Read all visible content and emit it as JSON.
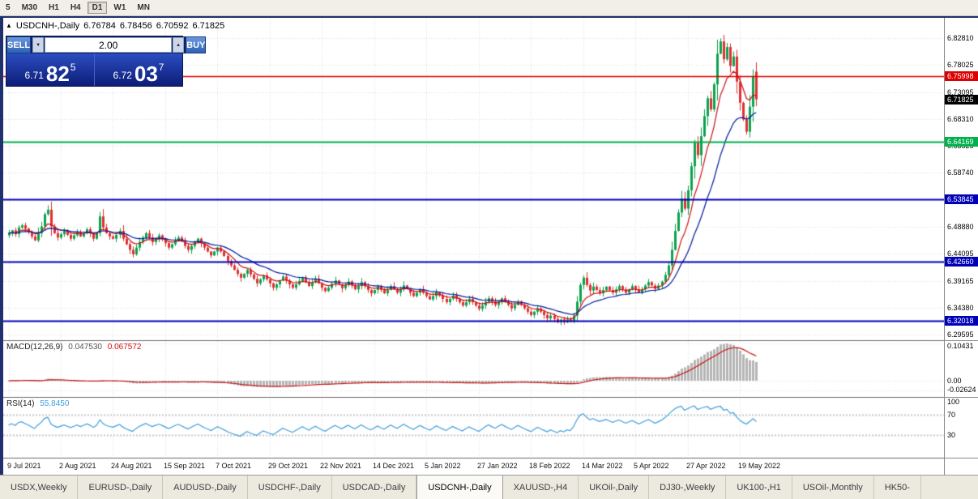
{
  "toolbar": {
    "timeframes": [
      {
        "label": "5",
        "active": false
      },
      {
        "label": "M30",
        "active": false
      },
      {
        "label": "H1",
        "active": false
      },
      {
        "label": "H4",
        "active": false
      },
      {
        "label": "D1",
        "active": true
      },
      {
        "label": "W1",
        "active": false
      },
      {
        "label": "MN",
        "active": false
      }
    ]
  },
  "chart": {
    "panel_toggle_icon": "▲",
    "symbol_label": "USDCNH-,Daily",
    "ohlc": {
      "open": "6.76784",
      "high": "6.78456",
      "low": "6.70592",
      "close": "6.71825"
    },
    "trade_panel": {
      "sell_label": "SELL",
      "buy_label": "BUY",
      "volume": "2.00",
      "spin_down_icon": "▼",
      "spin_up_icon": "▲",
      "sell_price": {
        "small": "6.71",
        "big": "82",
        "sup": "5"
      },
      "buy_price": {
        "small": "6.72",
        "big": "03",
        "sup": "7"
      }
    },
    "levels": [
      {
        "label": "6.75998",
        "value": 6.75998,
        "color": "#dc0000",
        "width": 1.4
      },
      {
        "label": "6.64169",
        "value": 6.64169,
        "color": "#00b04c",
        "width": 2
      },
      {
        "label": "6.53845",
        "value": 6.53845,
        "color": "#0000b8",
        "width": 2
      },
      {
        "label": "6.42660",
        "value": 6.4266,
        "color": "#0000b8",
        "width": 2
      },
      {
        "label": "6.32018",
        "value": 6.32018,
        "color": "#0000b8",
        "width": 2
      }
    ],
    "current_price": {
      "label": "6.71825",
      "value": 6.71825,
      "color": "#000000"
    },
    "y_axis_labels": [
      "6.82810",
      "6.78025",
      "6.73095",
      "6.68310",
      "6.63525",
      "6.58740",
      "6.48880",
      "6.44095",
      "6.39165",
      "6.34380",
      "6.29595"
    ]
  },
  "indicators": {
    "macd": {
      "label": "MACD(12,26,9)",
      "value_main": "0.047530",
      "value_signal": "0.067572",
      "axis": [
        "0.10431",
        "0.00",
        "-0.02624"
      ]
    },
    "rsi": {
      "label": "RSI(14)",
      "value": "55.8450",
      "axis": [
        "100",
        "70",
        "30"
      ],
      "levels": [
        70,
        30
      ]
    }
  },
  "chart_data": {
    "type": "candlestick",
    "symbol": "USDCNH-",
    "timeframe": "Daily",
    "x_labels": [
      "9 Jul 2021",
      "2 Aug 2021",
      "24 Aug 2021",
      "15 Sep 2021",
      "7 Oct 2021",
      "29 Oct 2021",
      "22 Nov 2021",
      "14 Dec 2021",
      "5 Jan 2022",
      "27 Jan 2022",
      "18 Feb 2022",
      "14 Mar 2022",
      "5 Apr 2022",
      "27 Apr 2022",
      "19 May 2022"
    ],
    "x_label_step": 16,
    "first_open": 6.474,
    "closes": [
      6.478,
      6.483,
      6.476,
      6.488,
      6.492,
      6.486,
      6.48,
      6.472,
      6.465,
      6.478,
      6.49,
      6.512,
      6.52,
      6.49,
      6.478,
      6.47,
      6.476,
      6.482,
      6.475,
      6.468,
      6.474,
      6.48,
      6.472,
      6.478,
      6.485,
      6.478,
      6.468,
      6.478,
      6.508,
      6.488,
      6.478,
      6.472,
      6.468,
      6.475,
      6.482,
      6.468,
      6.458,
      6.448,
      6.44,
      6.452,
      6.462,
      6.47,
      6.478,
      6.47,
      6.462,
      6.468,
      6.474,
      6.468,
      6.46,
      6.452,
      6.458,
      6.465,
      6.47,
      6.463,
      6.455,
      6.448,
      6.455,
      6.462,
      6.468,
      6.46,
      6.452,
      6.445,
      6.438,
      6.445,
      6.452,
      6.445,
      6.437,
      6.428,
      6.42,
      6.412,
      6.405,
      6.398,
      6.405,
      6.412,
      6.404,
      6.396,
      6.388,
      6.395,
      6.402,
      6.395,
      6.388,
      6.38,
      6.386,
      6.393,
      6.4,
      6.393,
      6.386,
      6.38,
      6.386,
      6.392,
      6.398,
      6.39,
      6.383,
      6.39,
      6.396,
      6.388,
      6.38,
      6.374,
      6.38,
      6.387,
      6.393,
      6.386,
      6.379,
      6.385,
      6.391,
      6.384,
      6.377,
      6.383,
      6.39,
      6.383,
      6.376,
      6.37,
      6.376,
      6.382,
      6.376,
      6.37,
      6.376,
      6.383,
      6.377,
      6.371,
      6.377,
      6.384,
      6.378,
      6.371,
      6.365,
      6.371,
      6.377,
      6.371,
      6.365,
      6.359,
      6.365,
      6.372,
      6.366,
      6.36,
      6.354,
      6.36,
      6.366,
      6.36,
      6.354,
      6.348,
      6.354,
      6.36,
      6.354,
      6.348,
      6.342,
      6.348,
      6.355,
      6.361,
      6.355,
      6.349,
      6.355,
      6.361,
      6.355,
      6.349,
      6.343,
      6.349,
      6.355,
      6.349,
      6.343,
      6.337,
      6.331,
      6.337,
      6.343,
      6.337,
      6.331,
      6.325,
      6.33,
      6.324,
      6.318,
      6.323,
      6.318,
      6.323,
      6.32,
      6.33,
      6.355,
      6.385,
      6.398,
      6.385,
      6.375,
      6.382,
      6.376,
      6.37,
      6.376,
      6.382,
      6.376,
      6.371,
      6.377,
      6.383,
      6.377,
      6.371,
      6.377,
      6.383,
      6.377,
      6.371,
      6.377,
      6.384,
      6.39,
      6.384,
      6.378,
      6.384,
      6.391,
      6.403,
      6.42,
      6.448,
      6.482,
      6.515,
      6.54,
      6.522,
      6.555,
      6.598,
      6.64,
      6.618,
      6.652,
      6.688,
      6.72,
      6.7,
      6.745,
      6.8,
      6.822,
      6.79,
      6.812,
      6.778,
      6.795,
      6.75,
      6.712,
      6.682,
      6.66,
      6.705,
      6.76,
      6.71825
    ],
    "last_candle": {
      "open": 6.76784,
      "high": 6.78456,
      "low": 6.70592,
      "close": 6.71825
    },
    "price_axis_range": [
      6.29595,
      6.8281
    ]
  },
  "bottom_tabs": [
    {
      "label": "USDX,Weekly",
      "active": false
    },
    {
      "label": "EURUSD-,Daily",
      "active": false
    },
    {
      "label": "AUDUSD-,Daily",
      "active": false
    },
    {
      "label": "USDCHF-,Daily",
      "active": false
    },
    {
      "label": "USDCAD-,Daily",
      "active": false
    },
    {
      "label": "USDCNH-,Daily",
      "active": true
    },
    {
      "label": "XAUUSD-,H4",
      "active": false
    },
    {
      "label": "UKOil-,Daily",
      "active": false
    },
    {
      "label": "DJ30-,Weekly",
      "active": false
    },
    {
      "label": "UK100-,H1",
      "active": false
    },
    {
      "label": "USOil-,Monthly",
      "active": false
    },
    {
      "label": "HK50-",
      "active": false
    }
  ],
  "colors": {
    "up": "#0ca24e",
    "down": "#e03131",
    "ma_fast": "#cc1111",
    "ma_slow": "#001a9e",
    "macd_hist": "#b5b5b5",
    "macd_signal": "#cc1111",
    "rsi_line": "#3f9fdc",
    "grid": "#dedede"
  }
}
